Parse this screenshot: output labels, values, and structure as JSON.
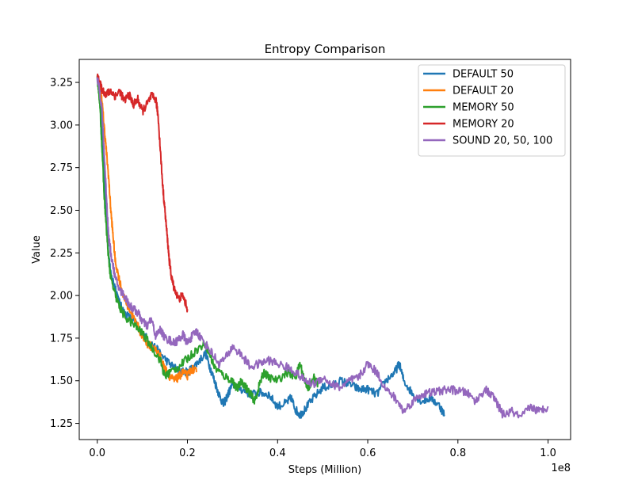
{
  "chart_data": {
    "type": "line",
    "title": "Entropy Comparison",
    "xlabel": "Steps (Million)",
    "ylabel": "Value",
    "x_offset_label": "1e8",
    "xlim": [
      -0.04,
      1.05
    ],
    "ylim": [
      1.155,
      3.385
    ],
    "xticks": [
      0.0,
      0.2,
      0.4,
      0.6,
      0.8,
      1.0
    ],
    "xtick_labels": [
      "0.0",
      "0.2",
      "0.4",
      "0.6",
      "0.8",
      "1.0"
    ],
    "yticks": [
      1.25,
      1.5,
      1.75,
      2.0,
      2.25,
      2.5,
      2.75,
      3.0,
      3.25
    ],
    "ytick_labels": [
      "1.25",
      "1.50",
      "1.75",
      "2.00",
      "2.25",
      "2.50",
      "2.75",
      "3.00",
      "3.25"
    ],
    "legend_position": "top-right",
    "series": [
      {
        "name": "DEFAULT 50",
        "color": "#1f77b4",
        "points": [
          [
            0.0,
            3.28
          ],
          [
            0.005,
            3.2
          ],
          [
            0.01,
            3.0
          ],
          [
            0.015,
            2.7
          ],
          [
            0.02,
            2.45
          ],
          [
            0.025,
            2.25
          ],
          [
            0.03,
            2.12
          ],
          [
            0.04,
            2.05
          ],
          [
            0.05,
            1.95
          ],
          [
            0.06,
            1.9
          ],
          [
            0.08,
            1.85
          ],
          [
            0.1,
            1.78
          ],
          [
            0.12,
            1.72
          ],
          [
            0.14,
            1.66
          ],
          [
            0.16,
            1.6
          ],
          [
            0.18,
            1.56
          ],
          [
            0.2,
            1.55
          ],
          [
            0.22,
            1.6
          ],
          [
            0.24,
            1.66
          ],
          [
            0.25,
            1.58
          ],
          [
            0.26,
            1.5
          ],
          [
            0.27,
            1.42
          ],
          [
            0.28,
            1.36
          ],
          [
            0.29,
            1.42
          ],
          [
            0.3,
            1.48
          ],
          [
            0.32,
            1.45
          ],
          [
            0.34,
            1.42
          ],
          [
            0.36,
            1.43
          ],
          [
            0.38,
            1.42
          ],
          [
            0.4,
            1.35
          ],
          [
            0.42,
            1.37
          ],
          [
            0.43,
            1.4
          ],
          [
            0.44,
            1.33
          ],
          [
            0.45,
            1.3
          ],
          [
            0.46,
            1.33
          ],
          [
            0.48,
            1.4
          ],
          [
            0.5,
            1.46
          ],
          [
            0.52,
            1.47
          ],
          [
            0.54,
            1.5
          ],
          [
            0.56,
            1.48
          ],
          [
            0.58,
            1.45
          ],
          [
            0.6,
            1.45
          ],
          [
            0.62,
            1.42
          ],
          [
            0.64,
            1.5
          ],
          [
            0.66,
            1.55
          ],
          [
            0.67,
            1.6
          ],
          [
            0.68,
            1.5
          ],
          [
            0.7,
            1.42
          ],
          [
            0.72,
            1.38
          ],
          [
            0.74,
            1.4
          ],
          [
            0.76,
            1.35
          ],
          [
            0.77,
            1.3
          ]
        ]
      },
      {
        "name": "DEFAULT 20",
        "color": "#ff7f0e",
        "points": [
          [
            0.0,
            3.28
          ],
          [
            0.005,
            3.22
          ],
          [
            0.01,
            3.15
          ],
          [
            0.015,
            3.0
          ],
          [
            0.02,
            2.85
          ],
          [
            0.025,
            2.7
          ],
          [
            0.03,
            2.5
          ],
          [
            0.035,
            2.35
          ],
          [
            0.04,
            2.2
          ],
          [
            0.05,
            2.08
          ],
          [
            0.06,
            1.98
          ],
          [
            0.07,
            1.93
          ],
          [
            0.08,
            1.87
          ],
          [
            0.09,
            1.82
          ],
          [
            0.1,
            1.76
          ],
          [
            0.11,
            1.72
          ],
          [
            0.12,
            1.7
          ],
          [
            0.13,
            1.68
          ],
          [
            0.14,
            1.64
          ],
          [
            0.15,
            1.57
          ],
          [
            0.16,
            1.53
          ],
          [
            0.17,
            1.5
          ],
          [
            0.18,
            1.52
          ],
          [
            0.19,
            1.55
          ],
          [
            0.2,
            1.53
          ],
          [
            0.21,
            1.57
          ],
          [
            0.22,
            1.55
          ]
        ]
      },
      {
        "name": "MEMORY 50",
        "color": "#2ca02c",
        "points": [
          [
            0.0,
            3.28
          ],
          [
            0.005,
            3.15
          ],
          [
            0.01,
            2.9
          ],
          [
            0.015,
            2.6
          ],
          [
            0.02,
            2.4
          ],
          [
            0.025,
            2.22
          ],
          [
            0.03,
            2.1
          ],
          [
            0.04,
            2.0
          ],
          [
            0.05,
            1.93
          ],
          [
            0.06,
            1.88
          ],
          [
            0.08,
            1.83
          ],
          [
            0.1,
            1.78
          ],
          [
            0.12,
            1.7
          ],
          [
            0.14,
            1.62
          ],
          [
            0.15,
            1.52
          ],
          [
            0.16,
            1.55
          ],
          [
            0.18,
            1.58
          ],
          [
            0.2,
            1.63
          ],
          [
            0.22,
            1.68
          ],
          [
            0.24,
            1.72
          ],
          [
            0.25,
            1.65
          ],
          [
            0.26,
            1.58
          ],
          [
            0.28,
            1.53
          ],
          [
            0.3,
            1.5
          ],
          [
            0.31,
            1.45
          ],
          [
            0.32,
            1.5
          ],
          [
            0.33,
            1.46
          ],
          [
            0.34,
            1.42
          ],
          [
            0.35,
            1.38
          ],
          [
            0.36,
            1.48
          ],
          [
            0.37,
            1.55
          ],
          [
            0.38,
            1.52
          ],
          [
            0.4,
            1.5
          ],
          [
            0.42,
            1.55
          ],
          [
            0.44,
            1.52
          ],
          [
            0.45,
            1.6
          ],
          [
            0.46,
            1.5
          ],
          [
            0.47,
            1.45
          ],
          [
            0.48,
            1.52
          ],
          [
            0.49,
            1.48
          ]
        ]
      },
      {
        "name": "MEMORY 20",
        "color": "#d62728",
        "points": [
          [
            0.0,
            3.28
          ],
          [
            0.005,
            3.25
          ],
          [
            0.01,
            3.21
          ],
          [
            0.02,
            3.18
          ],
          [
            0.03,
            3.2
          ],
          [
            0.04,
            3.17
          ],
          [
            0.05,
            3.2
          ],
          [
            0.06,
            3.14
          ],
          [
            0.07,
            3.18
          ],
          [
            0.08,
            3.12
          ],
          [
            0.09,
            3.15
          ],
          [
            0.1,
            3.08
          ],
          [
            0.11,
            3.12
          ],
          [
            0.12,
            3.17
          ],
          [
            0.13,
            3.15
          ],
          [
            0.135,
            3.05
          ],
          [
            0.14,
            2.85
          ],
          [
            0.145,
            2.65
          ],
          [
            0.15,
            2.5
          ],
          [
            0.155,
            2.35
          ],
          [
            0.16,
            2.2
          ],
          [
            0.165,
            2.1
          ],
          [
            0.17,
            2.05
          ],
          [
            0.18,
            1.98
          ],
          [
            0.19,
            2.0
          ],
          [
            0.2,
            1.92
          ]
        ]
      },
      {
        "name": "SOUND 20, 50, 100",
        "color": "#9467bd",
        "points": [
          [
            0.0,
            3.28
          ],
          [
            0.005,
            3.2
          ],
          [
            0.01,
            3.1
          ],
          [
            0.015,
            2.85
          ],
          [
            0.02,
            2.6
          ],
          [
            0.025,
            2.35
          ],
          [
            0.03,
            2.25
          ],
          [
            0.04,
            2.1
          ],
          [
            0.05,
            2.03
          ],
          [
            0.06,
            2.0
          ],
          [
            0.07,
            1.95
          ],
          [
            0.08,
            1.92
          ],
          [
            0.09,
            1.9
          ],
          [
            0.1,
            1.85
          ],
          [
            0.11,
            1.82
          ],
          [
            0.12,
            1.86
          ],
          [
            0.13,
            1.76
          ],
          [
            0.14,
            1.8
          ],
          [
            0.15,
            1.75
          ],
          [
            0.16,
            1.74
          ],
          [
            0.17,
            1.72
          ],
          [
            0.18,
            1.74
          ],
          [
            0.19,
            1.77
          ],
          [
            0.2,
            1.72
          ],
          [
            0.21,
            1.76
          ],
          [
            0.22,
            1.79
          ],
          [
            0.23,
            1.75
          ],
          [
            0.25,
            1.68
          ],
          [
            0.27,
            1.6
          ],
          [
            0.29,
            1.65
          ],
          [
            0.3,
            1.7
          ],
          [
            0.32,
            1.65
          ],
          [
            0.34,
            1.58
          ],
          [
            0.36,
            1.6
          ],
          [
            0.38,
            1.62
          ],
          [
            0.4,
            1.6
          ],
          [
            0.42,
            1.58
          ],
          [
            0.44,
            1.55
          ],
          [
            0.46,
            1.5
          ],
          [
            0.48,
            1.48
          ],
          [
            0.5,
            1.52
          ],
          [
            0.52,
            1.48
          ],
          [
            0.54,
            1.46
          ],
          [
            0.56,
            1.5
          ],
          [
            0.58,
            1.52
          ],
          [
            0.6,
            1.6
          ],
          [
            0.62,
            1.55
          ],
          [
            0.64,
            1.45
          ],
          [
            0.66,
            1.4
          ],
          [
            0.68,
            1.32
          ],
          [
            0.7,
            1.38
          ],
          [
            0.72,
            1.42
          ],
          [
            0.74,
            1.43
          ],
          [
            0.76,
            1.44
          ],
          [
            0.78,
            1.45
          ],
          [
            0.8,
            1.44
          ],
          [
            0.82,
            1.43
          ],
          [
            0.84,
            1.38
          ],
          [
            0.86,
            1.45
          ],
          [
            0.88,
            1.4
          ],
          [
            0.9,
            1.3
          ],
          [
            0.92,
            1.32
          ],
          [
            0.94,
            1.28
          ],
          [
            0.96,
            1.35
          ],
          [
            0.98,
            1.32
          ],
          [
            1.0,
            1.35
          ]
        ]
      }
    ]
  }
}
